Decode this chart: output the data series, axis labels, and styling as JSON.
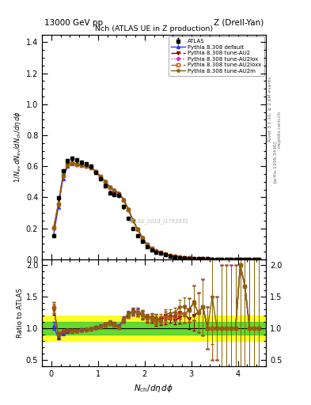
{
  "title_left": "13000 GeV pp",
  "title_right": "Z (Drell-Yan)",
  "plot_title": "Nch (ATLAS UE in Z production)",
  "rivet_label": "Rivet 3.1.10, ≥ 2.6M events",
  "arxiv_label": "[arXiv:1306.3436]",
  "mcplots_label": "mcplots.cern.ch",
  "atlas_watermark": "ATLAS_2019_I1793931",
  "x_data": [
    0.05,
    0.15,
    0.25,
    0.35,
    0.45,
    0.55,
    0.65,
    0.75,
    0.85,
    0.95,
    1.05,
    1.15,
    1.25,
    1.35,
    1.45,
    1.55,
    1.65,
    1.75,
    1.85,
    1.95,
    2.05,
    2.15,
    2.25,
    2.35,
    2.45,
    2.55,
    2.65,
    2.75,
    2.85,
    2.95,
    3.05,
    3.15,
    3.25,
    3.35,
    3.45,
    3.55,
    3.65,
    3.75,
    3.85,
    3.95,
    4.05,
    4.15,
    4.25,
    4.35,
    4.45
  ],
  "atlas_y": [
    0.155,
    0.395,
    0.57,
    0.635,
    0.65,
    0.64,
    0.625,
    0.615,
    0.6,
    0.56,
    0.52,
    0.475,
    0.43,
    0.42,
    0.415,
    0.34,
    0.265,
    0.2,
    0.155,
    0.115,
    0.082,
    0.062,
    0.048,
    0.038,
    0.028,
    0.021,
    0.016,
    0.012,
    0.009,
    0.007,
    0.005,
    0.004,
    0.003,
    0.003,
    0.002,
    0.002,
    0.001,
    0.001,
    0.001,
    0.001,
    0.0005,
    0.0003,
    0.0002,
    0.0001,
    0.0001
  ],
  "atlas_yerr": [
    0.01,
    0.015,
    0.012,
    0.012,
    0.012,
    0.012,
    0.012,
    0.012,
    0.012,
    0.012,
    0.012,
    0.012,
    0.012,
    0.012,
    0.012,
    0.012,
    0.01,
    0.008,
    0.007,
    0.006,
    0.004,
    0.003,
    0.003,
    0.002,
    0.002,
    0.001,
    0.001,
    0.001,
    0.001,
    0.001,
    0.001,
    0.001,
    0.001,
    0.001,
    0.001,
    0.001,
    0.001,
    0.001,
    0.001,
    0.001,
    0.001,
    0.001,
    0.001,
    0.001,
    0.001
  ],
  "py_default_y": [
    0.16,
    0.335,
    0.52,
    0.6,
    0.618,
    0.612,
    0.608,
    0.602,
    0.596,
    0.568,
    0.536,
    0.504,
    0.47,
    0.448,
    0.428,
    0.388,
    0.326,
    0.254,
    0.196,
    0.141,
    0.096,
    0.073,
    0.055,
    0.043,
    0.033,
    0.025,
    0.019,
    0.015,
    0.011,
    0.009,
    0.007,
    0.005,
    0.004,
    0.003,
    0.002,
    0.002,
    0.001,
    0.001,
    0.001,
    0.001,
    0.001,
    0.0005,
    0.0002,
    0.0001,
    0.0001
  ],
  "py_AU2_y": [
    0.2,
    0.35,
    0.538,
    0.608,
    0.62,
    0.61,
    0.605,
    0.6,
    0.592,
    0.563,
    0.532,
    0.5,
    0.465,
    0.443,
    0.422,
    0.382,
    0.32,
    0.25,
    0.192,
    0.138,
    0.094,
    0.071,
    0.053,
    0.042,
    0.032,
    0.024,
    0.018,
    0.014,
    0.011,
    0.008,
    0.006,
    0.005,
    0.004,
    0.003,
    0.002,
    0.002,
    0.001,
    0.001,
    0.001,
    0.001,
    0.001,
    0.0005,
    0.0002,
    0.0001,
    0.0001
  ],
  "py_AU2lox_y": [
    0.205,
    0.356,
    0.542,
    0.61,
    0.622,
    0.612,
    0.606,
    0.601,
    0.593,
    0.564,
    0.533,
    0.501,
    0.466,
    0.444,
    0.423,
    0.383,
    0.321,
    0.251,
    0.193,
    0.139,
    0.095,
    0.072,
    0.054,
    0.043,
    0.033,
    0.025,
    0.019,
    0.015,
    0.011,
    0.009,
    0.007,
    0.005,
    0.004,
    0.003,
    0.002,
    0.002,
    0.001,
    0.001,
    0.001,
    0.001,
    0.001,
    0.0005,
    0.0002,
    0.0001,
    0.0001
  ],
  "py_AU2loxx_y": [
    0.205,
    0.356,
    0.542,
    0.61,
    0.622,
    0.612,
    0.606,
    0.601,
    0.593,
    0.564,
    0.533,
    0.501,
    0.466,
    0.444,
    0.423,
    0.383,
    0.321,
    0.251,
    0.193,
    0.139,
    0.095,
    0.072,
    0.054,
    0.043,
    0.033,
    0.025,
    0.019,
    0.015,
    0.011,
    0.009,
    0.007,
    0.005,
    0.004,
    0.003,
    0.002,
    0.002,
    0.001,
    0.001,
    0.001,
    0.001,
    0.001,
    0.0005,
    0.0002,
    0.0001,
    0.0001
  ],
  "py_AU2m_y": [
    0.205,
    0.358,
    0.543,
    0.612,
    0.624,
    0.614,
    0.607,
    0.602,
    0.594,
    0.565,
    0.534,
    0.502,
    0.467,
    0.445,
    0.424,
    0.384,
    0.322,
    0.252,
    0.194,
    0.14,
    0.096,
    0.073,
    0.055,
    0.044,
    0.034,
    0.026,
    0.02,
    0.016,
    0.012,
    0.009,
    0.007,
    0.005,
    0.004,
    0.003,
    0.003,
    0.002,
    0.001,
    0.001,
    0.001,
    0.001,
    0.001,
    0.0005,
    0.0002,
    0.0001,
    0.0001
  ],
  "color_default": "#3333ff",
  "color_AU2": "#880000",
  "color_AU2lox": "#cc33bb",
  "color_AU2loxx": "#cc5500",
  "color_AU2m": "#886600",
  "color_atlas": "#000000",
  "ylim_main": [
    0.0,
    1.45
  ],
  "ylim_ratio": [
    0.39,
    2.09
  ],
  "xlim": [
    -0.2,
    4.6
  ],
  "yticks_main": [
    0.0,
    0.2,
    0.4,
    0.6,
    0.8,
    1.0,
    1.2,
    1.4
  ],
  "yticks_ratio": [
    0.5,
    1.0,
    1.5,
    2.0
  ],
  "xticks": [
    0,
    1,
    2,
    3,
    4
  ],
  "band_yellow": 0.2,
  "band_green": 0.1
}
